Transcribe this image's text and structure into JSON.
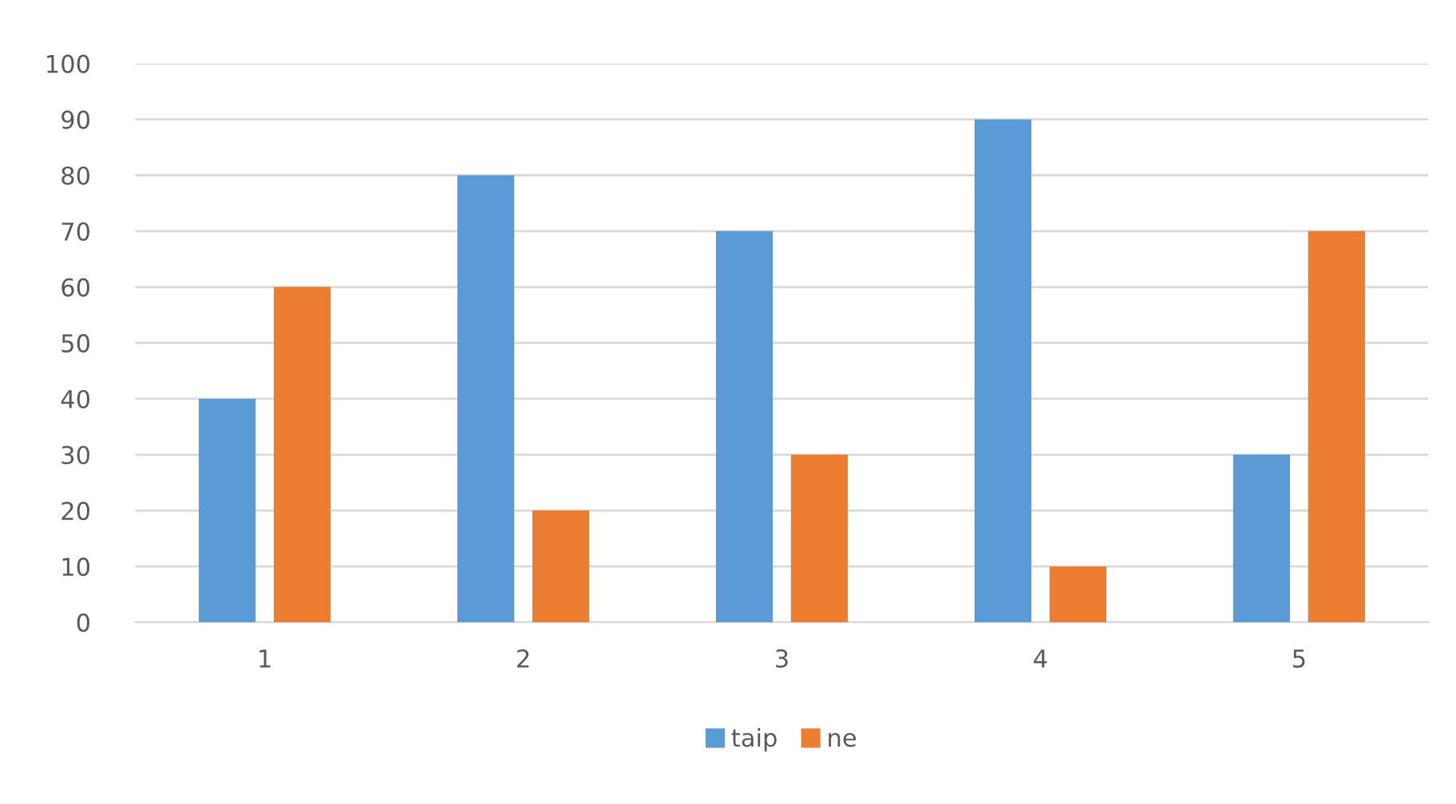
{
  "chart_data": {
    "type": "bar",
    "categories": [
      "1",
      "2",
      "3",
      "4",
      "5"
    ],
    "series": [
      {
        "name": "taip",
        "color": "#5b9bd5",
        "values": [
          40,
          80,
          70,
          90,
          30
        ]
      },
      {
        "name": "ne",
        "color": "#ed7d31",
        "values": [
          60,
          20,
          30,
          10,
          70
        ]
      }
    ],
    "ylim": [
      0,
      100
    ],
    "yticks": [
      0,
      10,
      20,
      30,
      40,
      50,
      60,
      70,
      80,
      90,
      100
    ],
    "grid": "y",
    "legend": "bottom"
  }
}
